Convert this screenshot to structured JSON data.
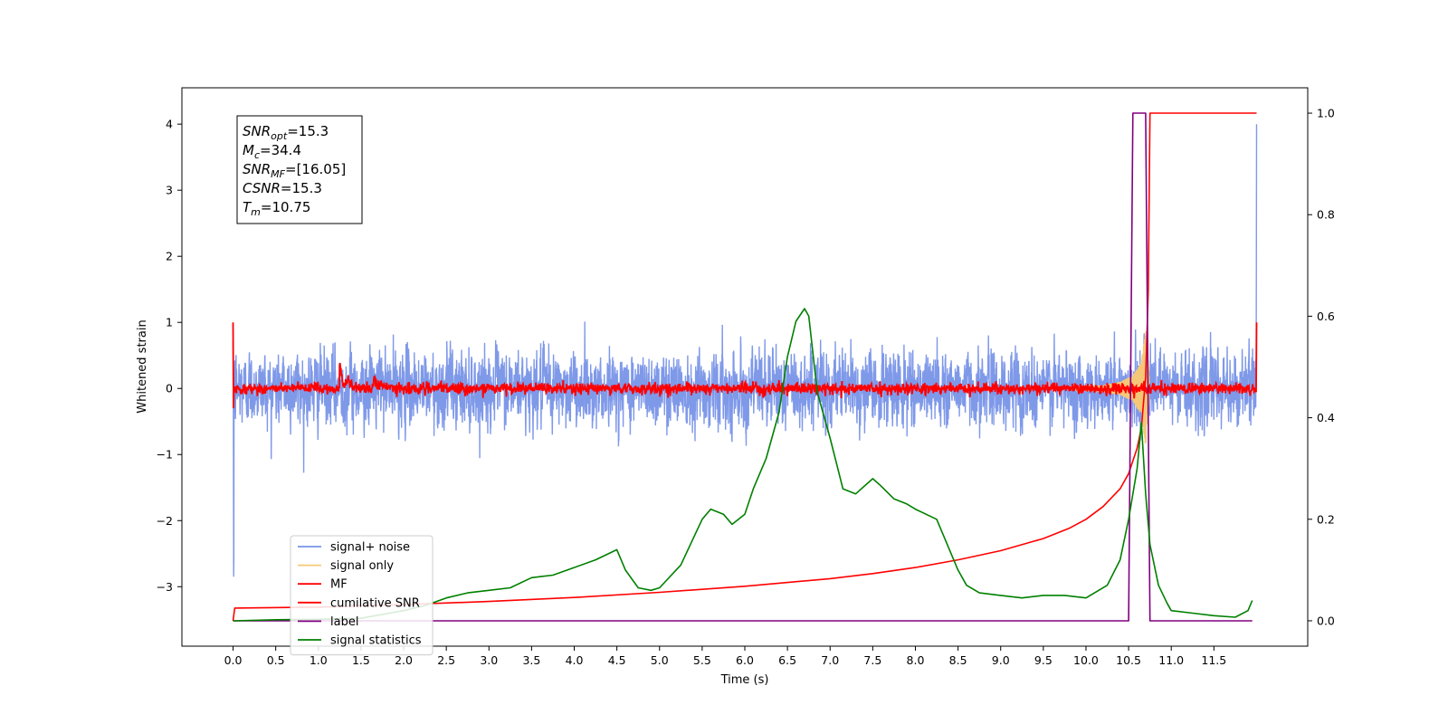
{
  "chart_data": {
    "type": "line",
    "xlabel": "Time (s)",
    "ylabel_left": "Whitened strain",
    "ylabel_right": "",
    "xlim": [
      -0.6,
      12.6
    ],
    "ylim_left": [
      -3.9,
      4.55
    ],
    "ylim_right": [
      -0.05,
      1.05
    ],
    "x_ticks": [
      "0.0",
      "0.5",
      "1.0",
      "1.5",
      "2.0",
      "2.5",
      "3.0",
      "3.5",
      "4.0",
      "4.5",
      "5.0",
      "5.5",
      "6.0",
      "6.5",
      "7.0",
      "7.5",
      "8.0",
      "8.5",
      "9.0",
      "9.5",
      "10.0",
      "10.5",
      "11.0",
      "11.5"
    ],
    "y_ticks_left": [
      "4",
      "3",
      "2",
      "1",
      "0",
      "−1",
      "−2",
      "−3"
    ],
    "y_ticks_right": [
      "1.0",
      "0.8",
      "0.6",
      "0.4",
      "0.2",
      "0.0"
    ],
    "grid": false,
    "legend_position": "lower-left",
    "annotation": [
      {
        "var": "SNR",
        "sub": "opt",
        "value": "=15.3"
      },
      {
        "var": "M",
        "sub": "c",
        "value": "=34.4"
      },
      {
        "var": "SNR",
        "sub": "MF",
        "value": "=[16.05]"
      },
      {
        "var": "CSNR",
        "sub": "",
        "value": "=15.3"
      },
      {
        "var": "T",
        "sub": "m",
        "value": "=10.75"
      }
    ],
    "series": [
      {
        "name": "signal+ noise",
        "color": "#7893e8",
        "axis": "left",
        "x_range": [
          0.0,
          12.0
        ],
        "approx_amplitude": 0.55,
        "approx_peaks": [
          1.35,
          1.7,
          -1.45
        ]
      },
      {
        "name": "signal only",
        "color": "#f5c878",
        "axis": "left",
        "envelope_x": [
          9.8,
          10.2,
          10.4,
          10.55,
          10.65,
          10.7,
          10.72,
          10.75
        ],
        "envelope_amp": [
          0.02,
          0.05,
          0.1,
          0.2,
          0.4,
          0.9,
          0.6,
          0.0
        ]
      },
      {
        "name": "MF",
        "color": "#ff0000",
        "axis": "left",
        "x_range": [
          0.0,
          12.0
        ],
        "approx_amplitude": 0.07,
        "bumps": [
          {
            "x": 1.25,
            "y": 0.4
          },
          {
            "x": 1.65,
            "y": 0.2
          }
        ],
        "start_value": 1.0,
        "end_value": 1.0
      },
      {
        "name": "cumilative SNR",
        "color": "#ff0000",
        "axis": "right",
        "x": [
          0.0,
          0.02,
          1,
          2,
          3,
          4,
          5,
          6,
          7,
          7.5,
          8,
          8.5,
          9,
          9.5,
          9.8,
          10,
          10.2,
          10.4,
          10.5,
          10.6,
          10.65,
          10.7,
          10.73,
          10.75,
          12.0
        ],
        "y": [
          0.0,
          0.025,
          0.027,
          0.032,
          0.038,
          0.046,
          0.056,
          0.068,
          0.083,
          0.093,
          0.105,
          0.12,
          0.138,
          0.162,
          0.182,
          0.2,
          0.225,
          0.26,
          0.29,
          0.34,
          0.38,
          0.48,
          0.65,
          1.0,
          1.0
        ]
      },
      {
        "name": "label",
        "color": "#800080",
        "axis": "right",
        "x": [
          0.0,
          10.5,
          10.55,
          10.7,
          10.75,
          11.95
        ],
        "y": [
          0.0,
          0.0,
          1.0,
          1.0,
          0.0,
          0.0
        ]
      },
      {
        "name": "signal statistics",
        "color": "#008000",
        "axis": "right",
        "x": [
          0.0,
          0.5,
          1.0,
          1.5,
          2.0,
          2.25,
          2.5,
          2.75,
          3.0,
          3.25,
          3.5,
          3.75,
          4.0,
          4.25,
          4.5,
          4.6,
          4.75,
          4.9,
          5.0,
          5.25,
          5.5,
          5.6,
          5.75,
          5.85,
          6.0,
          6.1,
          6.25,
          6.4,
          6.5,
          6.6,
          6.7,
          6.75,
          6.85,
          7.0,
          7.15,
          7.3,
          7.5,
          7.6,
          7.75,
          7.9,
          8.0,
          8.25,
          8.5,
          8.6,
          8.75,
          9.0,
          9.25,
          9.5,
          9.75,
          10.0,
          10.25,
          10.4,
          10.5,
          10.6,
          10.65,
          10.7,
          10.75,
          10.85,
          10.95,
          11.0,
          11.25,
          11.5,
          11.75,
          11.9,
          11.95
        ],
        "y": [
          0.0,
          0.002,
          0.003,
          0.005,
          0.02,
          0.03,
          0.045,
          0.055,
          0.06,
          0.065,
          0.085,
          0.09,
          0.105,
          0.12,
          0.14,
          0.1,
          0.065,
          0.06,
          0.065,
          0.11,
          0.2,
          0.22,
          0.21,
          0.19,
          0.21,
          0.26,
          0.32,
          0.41,
          0.52,
          0.59,
          0.615,
          0.6,
          0.45,
          0.36,
          0.26,
          0.25,
          0.28,
          0.265,
          0.24,
          0.23,
          0.22,
          0.2,
          0.1,
          0.07,
          0.055,
          0.05,
          0.045,
          0.05,
          0.05,
          0.045,
          0.07,
          0.12,
          0.2,
          0.3,
          0.39,
          0.25,
          0.15,
          0.07,
          0.035,
          0.02,
          0.015,
          0.01,
          0.007,
          0.02,
          0.04
        ]
      }
    ]
  }
}
